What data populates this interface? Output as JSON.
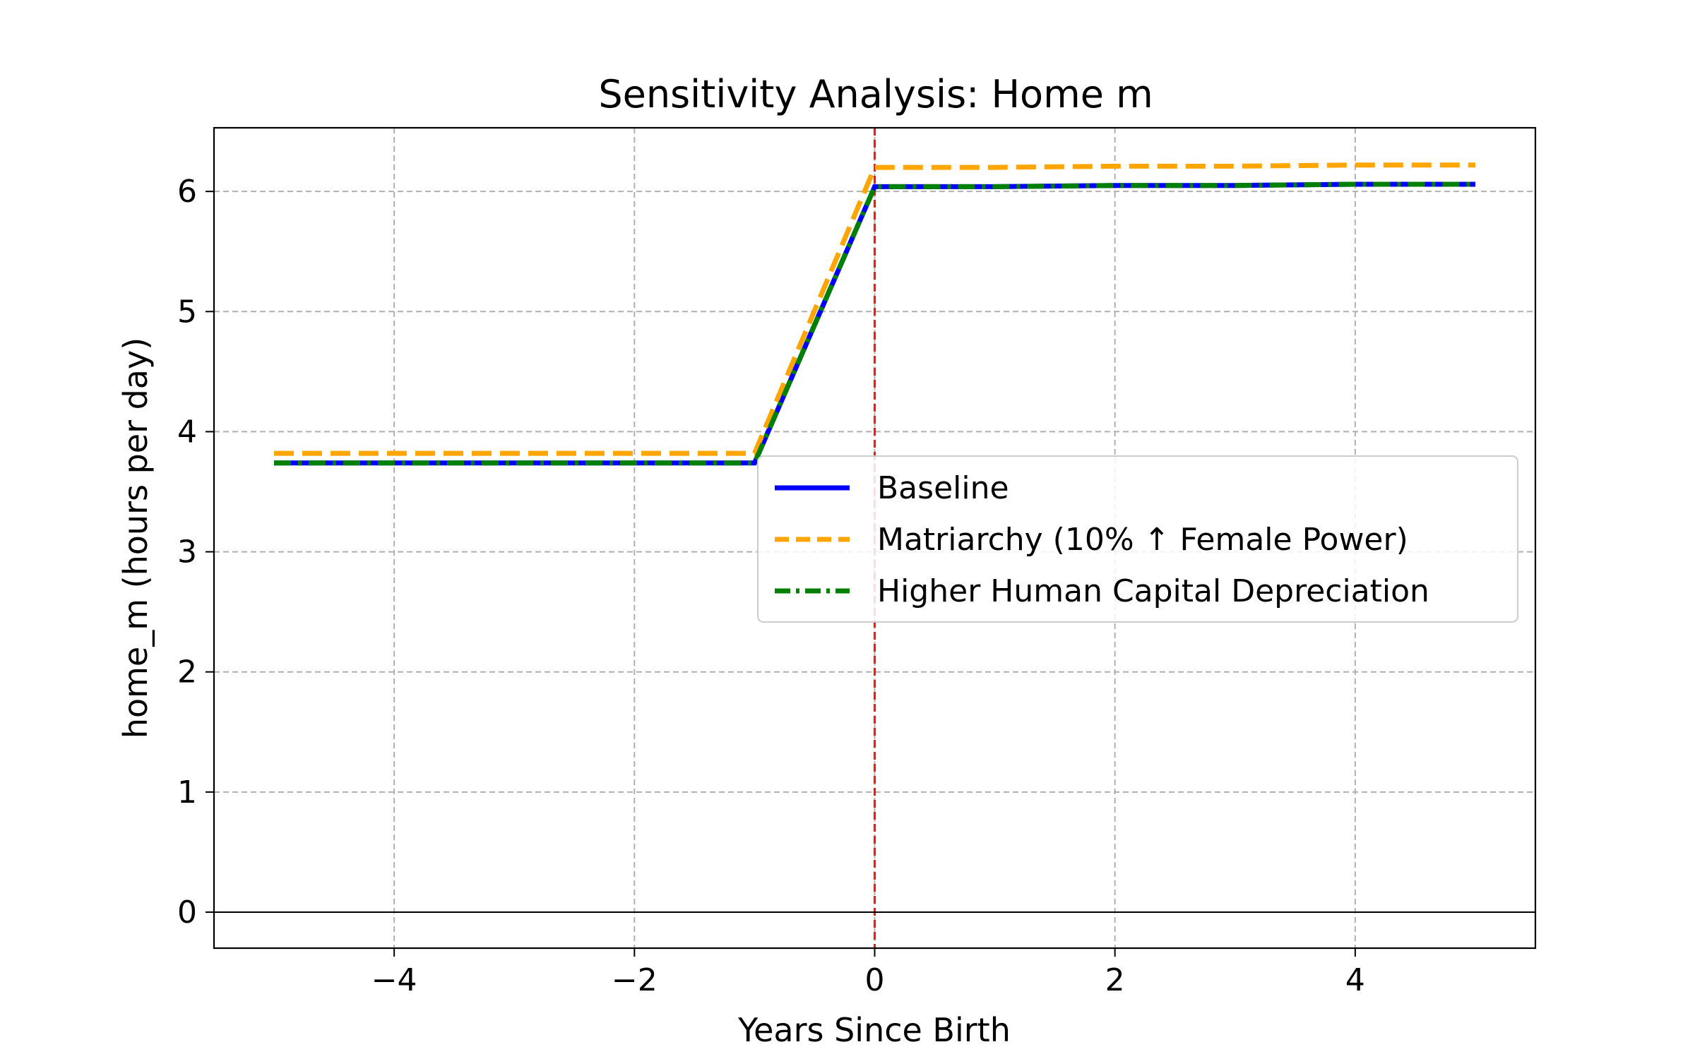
{
  "chart_data": {
    "type": "line",
    "title": "Sensitivity Analysis: Home m",
    "xlabel": "Years Since Birth",
    "ylabel": "home_m (hours per day)",
    "xlim": [
      -5.5,
      5.5
    ],
    "ylim": [
      -0.3,
      6.53
    ],
    "xticks": [
      -4,
      -2,
      0,
      2,
      4
    ],
    "xtick_labels": [
      "−4",
      "−2",
      "0",
      "2",
      "4"
    ],
    "yticks": [
      0,
      1,
      2,
      3,
      4,
      5,
      6
    ],
    "ytick_labels": [
      "0",
      "1",
      "2",
      "3",
      "4",
      "5",
      "6"
    ],
    "grid": true,
    "reference_lines": [
      {
        "orientation": "vertical",
        "value": 0,
        "color": "#e8201c",
        "style": "dashed"
      },
      {
        "orientation": "horizontal",
        "value": 0,
        "color": "#000000",
        "style": "solid"
      }
    ],
    "legend_position": "center-right",
    "x": [
      -5,
      -4,
      -3,
      -2,
      -1,
      0,
      1,
      2,
      3,
      4,
      5
    ],
    "series": [
      {
        "name": "Baseline",
        "color": "#0000ff",
        "style": "solid",
        "values": [
          3.74,
          3.74,
          3.74,
          3.74,
          3.74,
          6.04,
          6.04,
          6.05,
          6.05,
          6.06,
          6.06
        ]
      },
      {
        "name": "Matriarchy (10% ↑ Female Power)",
        "color": "#ffa500",
        "style": "dashed",
        "values": [
          3.82,
          3.82,
          3.82,
          3.82,
          3.82,
          6.2,
          6.2,
          6.21,
          6.21,
          6.22,
          6.22
        ]
      },
      {
        "name": "Higher Human Capital Depreciation",
        "color": "#008000",
        "style": "dashdot",
        "values": [
          3.74,
          3.74,
          3.74,
          3.74,
          3.74,
          6.04,
          6.04,
          6.05,
          6.05,
          6.06,
          6.06
        ]
      }
    ]
  }
}
